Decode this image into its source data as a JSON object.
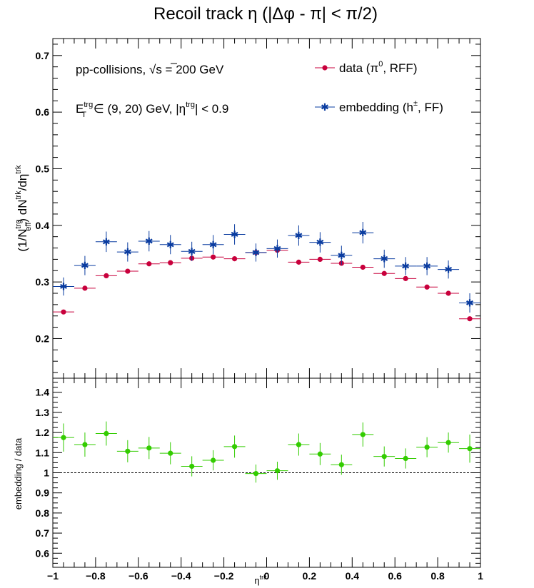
{
  "chart_data": [
    {
      "type": "scatter",
      "title": "Recoil track η (|Δφ - π| < π/2)",
      "ylabel": "(1/N_eff^trg) dN^trk/dη^trk",
      "xlim": [
        -1,
        1
      ],
      "ylim": [
        0.13,
        0.73
      ],
      "yticks": [
        "0.2",
        "0.3",
        "0.4",
        "0.5",
        "0.6",
        "0.7"
      ],
      "annotations": [
        "pp-collisions, √s = 200 GeV",
        "E_T^trg ∈ (9, 20) GeV, |η^trg| < 0.9"
      ],
      "legend_position": "top-right",
      "series": [
        {
          "name": "data (π⁰, RFF)",
          "color": "#c8003c",
          "marker": "circle",
          "x": [
            -0.95,
            -0.85,
            -0.75,
            -0.65,
            -0.55,
            -0.45,
            -0.35,
            -0.25,
            -0.15,
            -0.05,
            0.05,
            0.15,
            0.25,
            0.35,
            0.45,
            0.55,
            0.65,
            0.75,
            0.85,
            0.95
          ],
          "y": [
            0.247,
            0.289,
            0.311,
            0.319,
            0.332,
            0.334,
            0.342,
            0.344,
            0.341,
            0.352,
            0.356,
            0.335,
            0.34,
            0.333,
            0.326,
            0.315,
            0.306,
            0.291,
            0.28,
            0.235
          ],
          "yerr": [
            0.004,
            0.004,
            0.004,
            0.004,
            0.004,
            0.004,
            0.004,
            0.004,
            0.004,
            0.004,
            0.004,
            0.004,
            0.004,
            0.004,
            0.004,
            0.004,
            0.004,
            0.004,
            0.004,
            0.004
          ]
        },
        {
          "name": "embedding (h±, FF)",
          "color": "#0a3ca0",
          "marker": "star",
          "x": [
            -0.95,
            -0.85,
            -0.75,
            -0.65,
            -0.55,
            -0.45,
            -0.35,
            -0.25,
            -0.15,
            -0.05,
            0.05,
            0.15,
            0.25,
            0.35,
            0.45,
            0.55,
            0.65,
            0.75,
            0.85,
            0.95
          ],
          "y": [
            0.292,
            0.329,
            0.371,
            0.353,
            0.372,
            0.366,
            0.354,
            0.366,
            0.384,
            0.352,
            0.359,
            0.382,
            0.37,
            0.347,
            0.387,
            0.341,
            0.328,
            0.328,
            0.322,
            0.263
          ],
          "yerr": [
            0.016,
            0.017,
            0.018,
            0.017,
            0.018,
            0.017,
            0.017,
            0.017,
            0.018,
            0.016,
            0.016,
            0.018,
            0.018,
            0.017,
            0.019,
            0.016,
            0.016,
            0.016,
            0.016,
            0.017
          ]
        }
      ]
    },
    {
      "type": "scatter",
      "xlabel": "η^trk",
      "ylabel": "embedding / data",
      "xlim": [
        -1,
        1
      ],
      "ylim": [
        0.53,
        1.47
      ],
      "xticks": [
        "−1",
        "−0.8",
        "−0.6",
        "−0.4",
        "−0.2",
        "0",
        "0.2",
        "0.4",
        "0.6",
        "0.8",
        "1"
      ],
      "yticks": [
        "0.6",
        "0.7",
        "0.8",
        "0.9",
        "1",
        "1.1",
        "1.2",
        "1.3",
        "1.4"
      ],
      "reference_line": 1,
      "series": [
        {
          "color": "#33cc00",
          "marker": "circle",
          "x": [
            -0.95,
            -0.85,
            -0.75,
            -0.65,
            -0.55,
            -0.45,
            -0.35,
            -0.25,
            -0.15,
            -0.05,
            0.05,
            0.15,
            0.25,
            0.35,
            0.45,
            0.55,
            0.65,
            0.75,
            0.85,
            0.95
          ],
          "y": [
            1.175,
            1.14,
            1.195,
            1.107,
            1.123,
            1.097,
            1.032,
            1.062,
            1.13,
            0.996,
            1.01,
            1.14,
            1.093,
            1.04,
            1.19,
            1.081,
            1.071,
            1.127,
            1.15,
            1.12
          ],
          "yerr": [
            0.07,
            0.06,
            0.06,
            0.055,
            0.055,
            0.055,
            0.05,
            0.05,
            0.055,
            0.045,
            0.045,
            0.055,
            0.055,
            0.05,
            0.06,
            0.05,
            0.05,
            0.05,
            0.05,
            0.07
          ]
        }
      ]
    }
  ]
}
